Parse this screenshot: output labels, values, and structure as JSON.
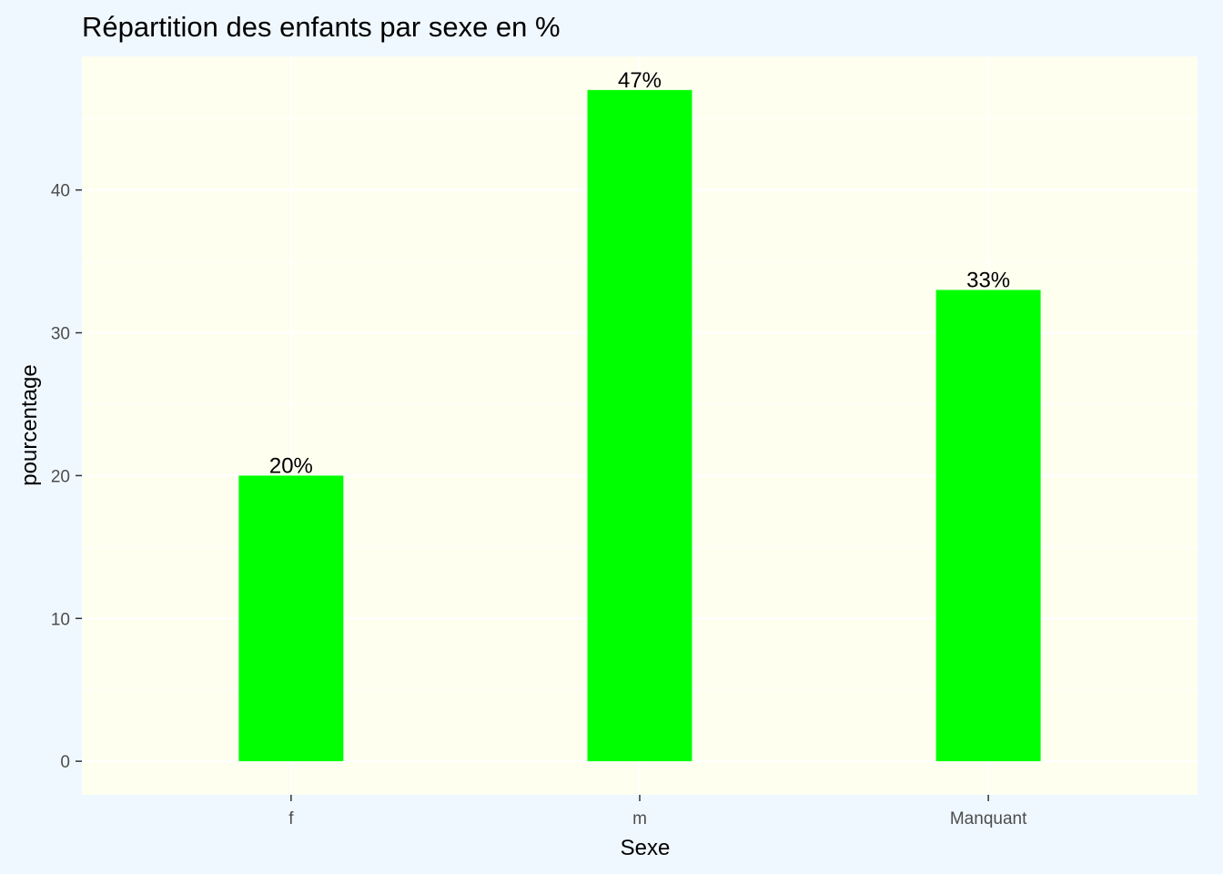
{
  "chart_data": {
    "type": "bar",
    "title": "Répartition des enfants par sexe en %",
    "xlabel": "Sexe",
    "ylabel": "pourcentage",
    "categories": [
      "f",
      "m",
      "Manquant"
    ],
    "values": [
      20,
      47,
      33
    ],
    "data_labels": [
      "20%",
      "47%",
      "33%"
    ],
    "ylim": [
      -2.35,
      49.35
    ],
    "yticks": [
      0,
      10,
      20,
      30,
      40
    ],
    "ytick_labels": [
      "0",
      "10",
      "20",
      "30",
      "40"
    ],
    "grid": true,
    "legend": "none",
    "colors": {
      "bar": "#00ff00",
      "panel_background": "#fffff0",
      "plot_background": "#f0f8ff",
      "grid": "#ffffff"
    }
  }
}
